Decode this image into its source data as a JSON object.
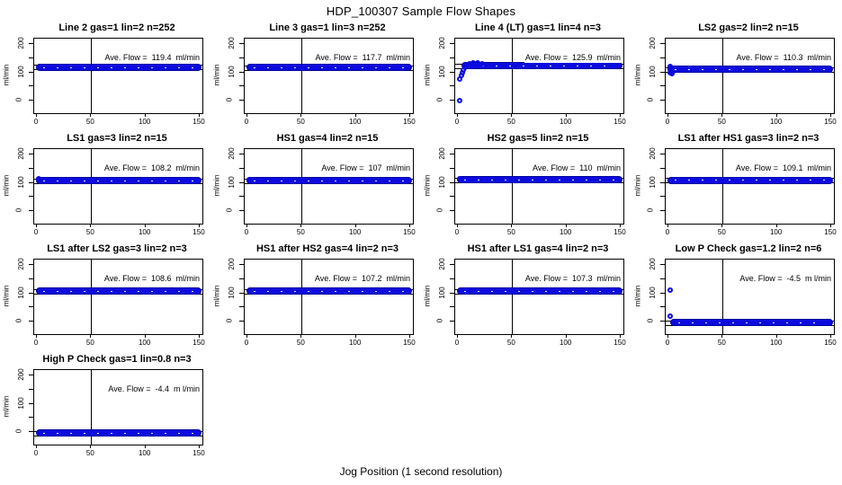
{
  "page": {
    "suptitle": "HDP_100307  Sample Flow Shapes",
    "xlabel": "Jog Position (1 second resolution)"
  },
  "chart_data": {
    "type": "scatter",
    "layout": {
      "rows": 4,
      "cols": 4,
      "panel_count": 13
    },
    "suptitle": "HDP_100307  Sample Flow Shapes",
    "shared_xlabel": "Jog Position (1 second resolution)",
    "ylabel_each": "ml/min",
    "x_ticks": [
      0,
      50,
      100,
      150
    ],
    "y_tick_marks": [
      0,
      50,
      100,
      150,
      200
    ],
    "y_ticks_labeled": [
      0,
      100,
      200
    ],
    "xlim": [
      -2.5,
      152.5
    ],
    "ylim": [
      -45,
      220
    ],
    "vline_x": 50,
    "grid": "off",
    "point_color": "#0b0be0",
    "axis_color": "#000000",
    "band_ref_offset": 8,
    "panels": [
      {
        "title": "Line 2 gas=1 lin=2 n=252",
        "ave_flow": 119.4,
        "annotation": "Ave. Flow =  119.4  ml/min",
        "band_y": 118,
        "band_x": [
          -1,
          151.5
        ],
        "outliers": []
      },
      {
        "title": "Line 3 gas=1 lin=3 n=252",
        "ave_flow": 117.7,
        "annotation": "Ave. Flow =  117.7  ml/min",
        "band_y": 117,
        "band_x": [
          -1,
          151.5
        ],
        "outliers": []
      },
      {
        "title": "Line 4 (LT) gas=1 lin=4 n=3",
        "ave_flow": 125.9,
        "annotation": "Ave. Flow =  125.9  ml/min",
        "band_y": 124,
        "band_x": [
          3,
          151.5
        ],
        "outliers": [
          [
            2,
            0
          ],
          [
            2,
            75
          ],
          [
            3,
            88
          ],
          [
            4,
            99
          ],
          [
            5,
            109
          ],
          [
            7,
            119
          ],
          [
            9,
            127
          ],
          [
            11,
            132
          ],
          [
            14,
            135
          ],
          [
            18,
            133
          ],
          [
            22,
            130
          ]
        ]
      },
      {
        "title": "LS2 gas=2 lin=2 n=15",
        "ave_flow": 110.3,
        "annotation": "Ave. Flow =  110.3  ml/min",
        "band_y": 110,
        "band_x": [
          -1,
          151.5
        ],
        "outliers": [
          [
            2,
            120
          ],
          [
            2,
            99
          ],
          [
            3,
            96
          ],
          [
            4,
            102
          ]
        ]
      },
      {
        "title": "LS1 gas=3 lin=2 n=15",
        "ave_flow": 108.2,
        "annotation": "Ave. Flow =  108.2  ml/min",
        "band_y": 108,
        "band_x": [
          -1,
          151.5
        ],
        "outliers": [
          [
            2,
            116
          ]
        ]
      },
      {
        "title": "HS1 gas=4 lin=2 n=15",
        "ave_flow": 107,
        "annotation": "Ave. Flow =  107  ml/min",
        "band_y": 107,
        "band_x": [
          -1,
          151.5
        ],
        "outliers": [
          [
            2,
            112
          ]
        ]
      },
      {
        "title": "HS2 gas=5 lin=2 n=15",
        "ave_flow": 110,
        "annotation": "Ave. Flow =  110  ml/min",
        "band_y": 110,
        "band_x": [
          -1,
          151.5
        ],
        "outliers": [
          [
            2,
            114
          ]
        ]
      },
      {
        "title": "LS1 after HS1 gas=3 lin=2 n=3",
        "ave_flow": 109.1,
        "annotation": "Ave. Flow =  109.1  ml/min",
        "band_y": 109,
        "band_x": [
          -1,
          151.5
        ],
        "outliers": []
      },
      {
        "title": "LS1 after LS2 gas=3 lin=2 n=3",
        "ave_flow": 108.6,
        "annotation": "Ave. Flow =  108.6  ml/min",
        "band_y": 108,
        "band_x": [
          -1,
          151.5
        ],
        "outliers": []
      },
      {
        "title": "HS1 after HS2 gas=4 lin=2 n=3",
        "ave_flow": 107.2,
        "annotation": "Ave. Flow =  107.2  ml/min",
        "band_y": 107,
        "band_x": [
          -1,
          151.5
        ],
        "outliers": []
      },
      {
        "title": "HS1 after LS1 gas=4 lin=2 n=3",
        "ave_flow": 107.3,
        "annotation": "Ave. Flow =  107.3  ml/min",
        "band_y": 107,
        "band_x": [
          -1,
          151.5
        ],
        "outliers": []
      },
      {
        "title": "Low P Check gas=1.2 lin=2 n=6",
        "ave_flow": -4.5,
        "annotation": "Ave. Flow =  -4.5  m l/min",
        "band_y": -5,
        "band_x": [
          2,
          151.5
        ],
        "outliers": [
          [
            2,
            110
          ],
          [
            2,
            18
          ]
        ]
      },
      {
        "title": "High P Check gas=1 lin=0.8 n=3",
        "ave_flow": -4.4,
        "annotation": "Ave. Flow =  -4.4  m l/min",
        "band_y": -5,
        "band_x": [
          -1,
          151.5
        ],
        "outliers": []
      }
    ]
  }
}
